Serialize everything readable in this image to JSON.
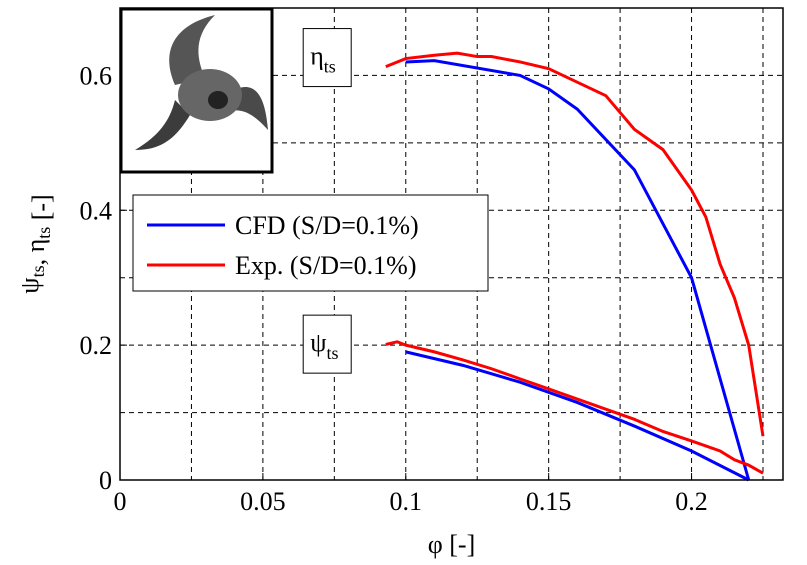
{
  "chart_data": {
    "type": "line",
    "xlabel": [
      {
        "t": "φ [-]"
      }
    ],
    "ylabel": [
      {
        "t": "ψ",
        "sub": "ts"
      },
      {
        "t": ", η",
        "sub": "ts"
      },
      {
        "t": " [-]"
      }
    ],
    "xlim": [
      0,
      0.232
    ],
    "ylim": [
      0,
      0.7
    ],
    "xticks": [
      0,
      0.05,
      0.1,
      0.15,
      0.2
    ],
    "yticks": [
      0,
      0.2,
      0.4,
      0.6
    ],
    "xminor": [
      0.025,
      0.075,
      0.125,
      0.175,
      0.225
    ],
    "yminor": [
      0.1,
      0.3,
      0.5
    ],
    "grid": true,
    "legend": "left",
    "annotations": [
      {
        "t": "η",
        "sub": "ts",
        "x": 0.09,
        "y": 0.625
      },
      {
        "t": "ψ",
        "sub": "ts",
        "x": 0.09,
        "y": 0.2
      }
    ],
    "series": [
      {
        "name": "CFD (S/D=0.1%)",
        "color": "#0000ff",
        "eta": {
          "x": [
            0.1,
            0.11,
            0.14,
            0.15,
            0.16,
            0.18,
            0.2,
            0.22
          ],
          "values": [
            0.62,
            0.622,
            0.6,
            0.58,
            0.55,
            0.46,
            0.3,
            0.0
          ]
        },
        "psi": {
          "x": [
            0.1,
            0.12,
            0.14,
            0.16,
            0.18,
            0.2,
            0.22
          ],
          "values": [
            0.19,
            0.17,
            0.145,
            0.115,
            0.08,
            0.043,
            0.0
          ]
        }
      },
      {
        "name": "Exp. (S/D=0.1%)",
        "color": "#ff0000",
        "eta": {
          "x": [
            0.093,
            0.1,
            0.11,
            0.118,
            0.125,
            0.13,
            0.14,
            0.15,
            0.155,
            0.16,
            0.17,
            0.18,
            0.19,
            0.2,
            0.205,
            0.21,
            0.215,
            0.22,
            0.225
          ],
          "values": [
            0.613,
            0.625,
            0.63,
            0.633,
            0.628,
            0.628,
            0.62,
            0.61,
            0.6,
            0.59,
            0.57,
            0.52,
            0.49,
            0.43,
            0.39,
            0.32,
            0.27,
            0.2,
            0.065
          ]
        },
        "psi": {
          "x": [
            0.093,
            0.097,
            0.1,
            0.11,
            0.12,
            0.13,
            0.14,
            0.15,
            0.16,
            0.17,
            0.18,
            0.19,
            0.2,
            0.21,
            0.215,
            0.22,
            0.225
          ],
          "values": [
            0.201,
            0.205,
            0.2,
            0.19,
            0.178,
            0.165,
            0.15,
            0.135,
            0.12,
            0.105,
            0.09,
            0.072,
            0.058,
            0.043,
            0.03,
            0.022,
            0.01
          ]
        }
      }
    ]
  }
}
